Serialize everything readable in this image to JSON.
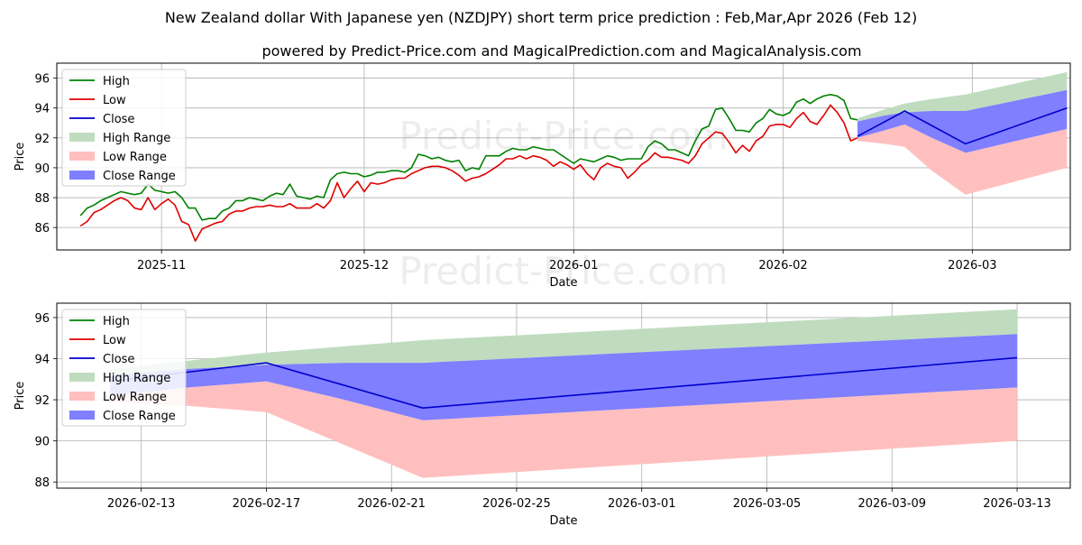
{
  "title": "New Zealand dollar With Japanese yen (NZDJPY) short term price prediction : Feb,Mar,Apr 2026 (Feb 12)",
  "subtitle": "powered by Predict-Price.com and MagicalPrediction.com and MagicalAnalysis.com",
  "watermark": "Predict-Price.com",
  "colors": {
    "high": "#008000",
    "low": "#e00000",
    "close": "#0000cc",
    "high_range": "#bfdcbf",
    "low_range": "#ffbfbf",
    "close_range": "#7f7fff"
  },
  "chart_data": [
    {
      "type": "line",
      "xlabel": "Date",
      "ylabel": "Price",
      "x_start": "2025-10-20",
      "xlim": [
        -3.5,
        146.5
      ],
      "ylim": [
        84.5,
        97.0
      ],
      "yticks": [
        86,
        88,
        90,
        92,
        94,
        96
      ],
      "xticks": [
        {
          "day": 12,
          "label": "2025-11"
        },
        {
          "day": 42,
          "label": "2025-12"
        },
        {
          "day": 73,
          "label": "2026-01"
        },
        {
          "day": 104,
          "label": "2026-02"
        },
        {
          "day": 132,
          "label": "2026-03"
        }
      ],
      "grid": true,
      "legend": {
        "position": "top-left",
        "entries": [
          "High",
          "Low",
          "Close",
          "High Range",
          "Low Range",
          "Close Range"
        ]
      },
      "series": [
        {
          "name": "High",
          "x": [
            0,
            1,
            2,
            3,
            4,
            5,
            6,
            7,
            8,
            9,
            10,
            11,
            12,
            13,
            14,
            15,
            16,
            17,
            18,
            19,
            20,
            21,
            22,
            23,
            24,
            25,
            26,
            27,
            28,
            29,
            30,
            31,
            32,
            33,
            34,
            35,
            36,
            37,
            38,
            39,
            40,
            41,
            42,
            43,
            44,
            45,
            46,
            47,
            48,
            49,
            50,
            51,
            52,
            53,
            54,
            55,
            56,
            57,
            58,
            59,
            60,
            61,
            62,
            63,
            64,
            65,
            66,
            67,
            68,
            69,
            70,
            71,
            72,
            73,
            74,
            75,
            76,
            77,
            78,
            79,
            80,
            81,
            82,
            83,
            84,
            85,
            86,
            87,
            88,
            89,
            90,
            91,
            92,
            93,
            94,
            95,
            96,
            97,
            98,
            99,
            100,
            101,
            102,
            103,
            104,
            105,
            106,
            107,
            108,
            109,
            110,
            111,
            112,
            113,
            114,
            115
          ],
          "values": [
            86.8,
            87.3,
            87.5,
            87.8,
            88.0,
            88.2,
            88.4,
            88.3,
            88.2,
            88.3,
            88.9,
            88.5,
            88.4,
            88.3,
            88.4,
            88.0,
            87.3,
            87.3,
            86.5,
            86.6,
            86.6,
            87.1,
            87.3,
            87.8,
            87.8,
            88.0,
            87.9,
            87.8,
            88.1,
            88.3,
            88.2,
            88.9,
            88.1,
            88.0,
            87.9,
            88.1,
            88.0,
            89.2,
            89.6,
            89.7,
            89.6,
            89.6,
            89.4,
            89.5,
            89.7,
            89.7,
            89.8,
            89.8,
            89.7,
            90.0,
            90.9,
            90.8,
            90.6,
            90.7,
            90.5,
            90.4,
            90.5,
            89.8,
            90.0,
            89.9,
            90.8,
            90.8,
            90.8,
            91.1,
            91.3,
            91.2,
            91.2,
            91.4,
            91.3,
            91.2,
            91.2,
            90.9,
            90.6,
            90.3,
            90.6,
            90.5,
            90.4,
            90.6,
            90.8,
            90.7,
            90.5,
            90.6,
            90.6,
            90.6,
            91.4,
            91.8,
            91.6,
            91.2,
            91.2,
            91.0,
            90.8,
            91.8,
            92.6,
            92.8,
            93.9,
            94.0,
            93.3,
            92.5,
            92.5,
            92.4,
            93.0,
            93.3,
            93.9,
            93.6,
            93.5,
            93.7,
            94.4,
            94.6,
            94.3,
            94.6,
            94.8,
            94.9,
            94.8,
            94.5,
            93.3,
            93.2
          ]
        },
        {
          "name": "Low",
          "x": [
            0,
            1,
            2,
            3,
            4,
            5,
            6,
            7,
            8,
            9,
            10,
            11,
            12,
            13,
            14,
            15,
            16,
            17,
            18,
            19,
            20,
            21,
            22,
            23,
            24,
            25,
            26,
            27,
            28,
            29,
            30,
            31,
            32,
            33,
            34,
            35,
            36,
            37,
            38,
            39,
            40,
            41,
            42,
            43,
            44,
            45,
            46,
            47,
            48,
            49,
            50,
            51,
            52,
            53,
            54,
            55,
            56,
            57,
            58,
            59,
            60,
            61,
            62,
            63,
            64,
            65,
            66,
            67,
            68,
            69,
            70,
            71,
            72,
            73,
            74,
            75,
            76,
            77,
            78,
            79,
            80,
            81,
            82,
            83,
            84,
            85,
            86,
            87,
            88,
            89,
            90,
            91,
            92,
            93,
            94,
            95,
            96,
            97,
            98,
            99,
            100,
            101,
            102,
            103,
            104,
            105,
            106,
            107,
            108,
            109,
            110,
            111,
            112,
            113,
            114,
            115
          ],
          "values": [
            86.1,
            86.4,
            87.0,
            87.2,
            87.5,
            87.8,
            88.0,
            87.8,
            87.3,
            87.2,
            88.0,
            87.2,
            87.6,
            87.9,
            87.5,
            86.4,
            86.2,
            85.1,
            85.9,
            86.1,
            86.3,
            86.4,
            86.9,
            87.1,
            87.1,
            87.3,
            87.4,
            87.4,
            87.5,
            87.4,
            87.4,
            87.6,
            87.3,
            87.3,
            87.3,
            87.6,
            87.3,
            87.8,
            89.0,
            88.0,
            88.6,
            89.1,
            88.4,
            89.0,
            88.9,
            89.0,
            89.2,
            89.3,
            89.3,
            89.6,
            89.8,
            90.0,
            90.1,
            90.1,
            90.0,
            89.8,
            89.5,
            89.1,
            89.3,
            89.4,
            89.6,
            89.9,
            90.2,
            90.6,
            90.6,
            90.8,
            90.6,
            90.8,
            90.7,
            90.5,
            90.1,
            90.4,
            90.2,
            89.9,
            90.2,
            89.6,
            89.2,
            90.0,
            90.3,
            90.1,
            90.0,
            89.3,
            89.7,
            90.2,
            90.5,
            91.0,
            90.7,
            90.7,
            90.6,
            90.5,
            90.3,
            90.8,
            91.6,
            92.0,
            92.4,
            92.3,
            91.7,
            91.0,
            91.5,
            91.1,
            91.8,
            92.1,
            92.8,
            92.9,
            92.9,
            92.7,
            93.3,
            93.7,
            93.1,
            92.9,
            93.5,
            94.2,
            93.7,
            93.0,
            91.8,
            92.0
          ]
        },
        {
          "name": "Close",
          "x": [
            115,
            122,
            131,
            146
          ],
          "values": [
            92.1,
            93.8,
            91.6,
            94.0
          ]
        }
      ],
      "ranges": [
        {
          "name": "High Range",
          "x": [
            115,
            119,
            122,
            126,
            131,
            146
          ],
          "upper": [
            93.3,
            93.9,
            94.3,
            94.6,
            94.9,
            96.4
          ],
          "lower": [
            93.1,
            93.5,
            93.7,
            93.8,
            93.8,
            95.2
          ]
        },
        {
          "name": "Low Range",
          "x": [
            115,
            119,
            122,
            126,
            131,
            146
          ],
          "upper": [
            92.0,
            92.5,
            92.9,
            92.0,
            91.0,
            92.6
          ],
          "lower": [
            91.8,
            91.6,
            91.4,
            89.8,
            88.2,
            90.0
          ]
        },
        {
          "name": "Close Range",
          "x": [
            115,
            119,
            122,
            126,
            131,
            146
          ],
          "upper": [
            93.1,
            93.5,
            93.7,
            93.8,
            93.8,
            95.2
          ],
          "lower": [
            92.0,
            92.5,
            92.9,
            92.0,
            91.0,
            92.6
          ]
        }
      ]
    },
    {
      "type": "line",
      "xlabel": "Date",
      "ylabel": "Price",
      "x_start": "2026-02-12",
      "xlim": [
        -1.7,
        30.7
      ],
      "ylim": [
        87.7,
        96.7
      ],
      "yticks": [
        88,
        90,
        92,
        94,
        96
      ],
      "xticks": [
        {
          "day": 1,
          "label": "2026-02-13"
        },
        {
          "day": 5,
          "label": "2026-02-17"
        },
        {
          "day": 9,
          "label": "2026-02-21"
        },
        {
          "day": 13,
          "label": "2026-02-25"
        },
        {
          "day": 17,
          "label": "2026-03-01"
        },
        {
          "day": 21,
          "label": "2026-03-05"
        },
        {
          "day": 25,
          "label": "2026-03-09"
        },
        {
          "day": 29,
          "label": "2026-03-13"
        }
      ],
      "grid": true,
      "legend": {
        "position": "top-left",
        "entries": [
          "High",
          "Low",
          "Close",
          "High Range",
          "Low Range",
          "Close Range"
        ]
      },
      "series": [
        {
          "name": "Close",
          "x": [
            0,
            5,
            10,
            29
          ],
          "values": [
            92.9,
            93.8,
            91.6,
            94.05
          ]
        }
      ],
      "ranges": [
        {
          "name": "High Range",
          "x": [
            0,
            2.5,
            5,
            7.5,
            10,
            29
          ],
          "upper": [
            93.5,
            93.9,
            94.3,
            94.6,
            94.9,
            96.4
          ],
          "lower": [
            93.2,
            93.5,
            93.7,
            93.8,
            93.8,
            95.2
          ]
        },
        {
          "name": "Low Range",
          "x": [
            0,
            2.5,
            5,
            7.5,
            10,
            29
          ],
          "upper": [
            92.2,
            92.6,
            92.9,
            92.0,
            91.0,
            92.6
          ],
          "lower": [
            91.9,
            91.7,
            91.4,
            89.8,
            88.2,
            90.0
          ]
        },
        {
          "name": "Close Range",
          "x": [
            0,
            2.5,
            5,
            7.5,
            10,
            29
          ],
          "upper": [
            93.2,
            93.5,
            93.7,
            93.8,
            93.8,
            95.2
          ],
          "lower": [
            92.2,
            92.6,
            92.9,
            92.0,
            91.0,
            92.6
          ]
        }
      ]
    }
  ]
}
